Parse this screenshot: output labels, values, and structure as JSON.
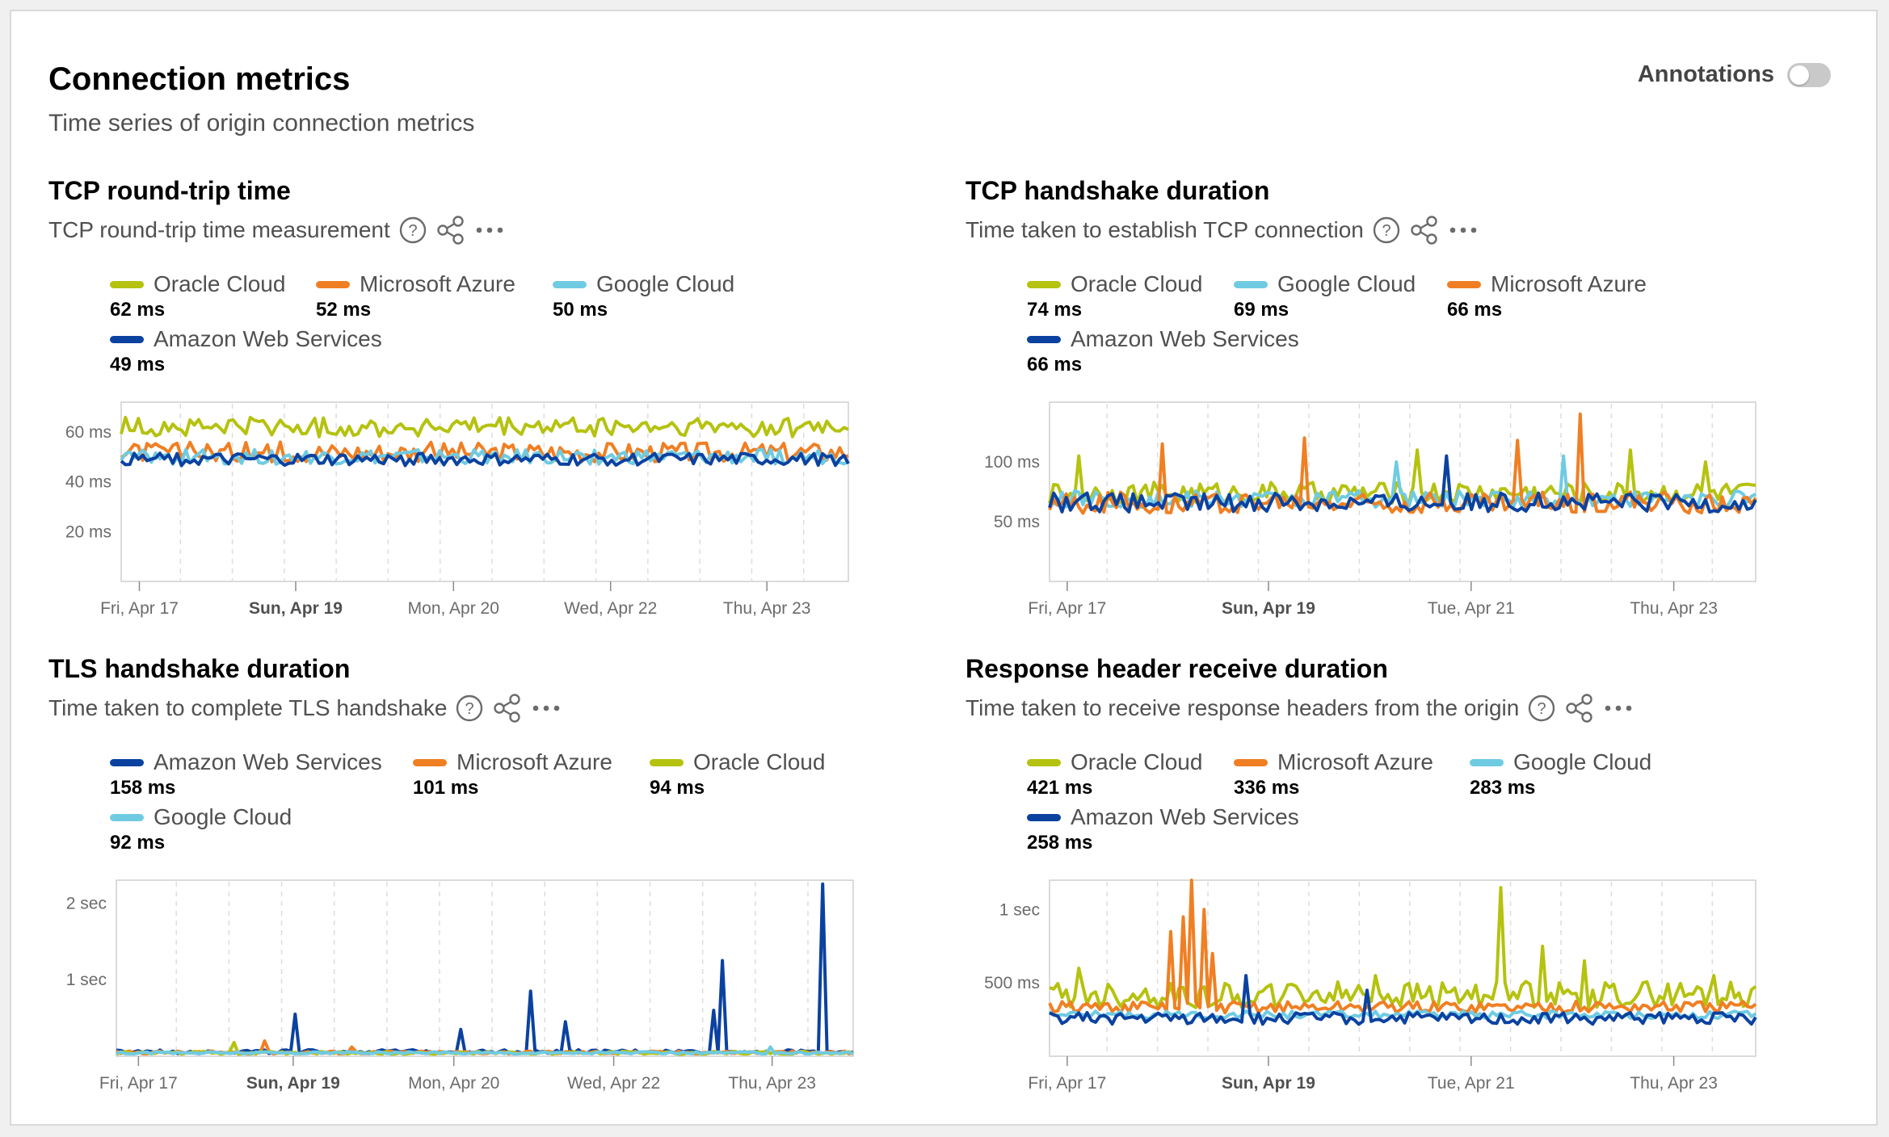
{
  "page": {
    "title": "Connection metrics",
    "subtitle": "Time series of origin connection metrics",
    "annotations_label": "Annotations",
    "annotations_enabled": false
  },
  "colors": {
    "Oracle Cloud": "#b5c20f",
    "Microsoft Azure": "#f07f23",
    "Google Cloud": "#6fcbe2",
    "Amazon Web Services": "#0b42a0"
  },
  "icons": [
    "help-circle-icon",
    "share-icon",
    "more-icon"
  ],
  "panels": [
    {
      "id": "tcp-rtt",
      "title": "TCP round-trip time",
      "subtitle": "TCP round-trip time measurement",
      "legend": [
        {
          "name": "Oracle Cloud",
          "value": "62 ms"
        },
        {
          "name": "Microsoft Azure",
          "value": "52 ms"
        },
        {
          "name": "Google Cloud",
          "value": "50 ms"
        },
        {
          "name": "Amazon Web Services",
          "value": "49 ms"
        }
      ],
      "y_ticks": [
        "60 ms",
        "40 ms",
        "20 ms"
      ],
      "x_ticks": [
        {
          "label": "Fri, Apr 17",
          "bold": false
        },
        {
          "label": "Sun, Apr 19",
          "bold": true
        },
        {
          "label": "Mon, Apr 20",
          "bold": false
        },
        {
          "label": "Wed, Apr 22",
          "bold": false
        },
        {
          "label": "Thu, Apr 23",
          "bold": false
        }
      ]
    },
    {
      "id": "tcp-handshake",
      "title": "TCP handshake duration",
      "subtitle": "Time taken to establish TCP connection",
      "legend": [
        {
          "name": "Oracle Cloud",
          "value": "74 ms"
        },
        {
          "name": "Google Cloud",
          "value": "69 ms"
        },
        {
          "name": "Microsoft Azure",
          "value": "66 ms"
        },
        {
          "name": "Amazon Web Services",
          "value": "66 ms"
        }
      ],
      "y_ticks": [
        "100 ms",
        "50 ms"
      ],
      "x_ticks": [
        {
          "label": "Fri, Apr 17",
          "bold": false
        },
        {
          "label": "Sun, Apr 19",
          "bold": true
        },
        {
          "label": "Tue, Apr 21",
          "bold": false
        },
        {
          "label": "Thu, Apr 23",
          "bold": false
        }
      ]
    },
    {
      "id": "tls-handshake",
      "title": "TLS handshake duration",
      "subtitle": "Time taken to complete TLS handshake",
      "legend": [
        {
          "name": "Amazon Web Services",
          "value": "158 ms"
        },
        {
          "name": "Microsoft Azure",
          "value": "101 ms"
        },
        {
          "name": "Oracle Cloud",
          "value": "94 ms"
        },
        {
          "name": "Google Cloud",
          "value": "92 ms"
        }
      ],
      "y_ticks": [
        "2 sec",
        "1 sec"
      ],
      "x_ticks": [
        {
          "label": "Fri, Apr 17",
          "bold": false
        },
        {
          "label": "Sun, Apr 19",
          "bold": true
        },
        {
          "label": "Mon, Apr 20",
          "bold": false
        },
        {
          "label": "Wed, Apr 22",
          "bold": false
        },
        {
          "label": "Thu, Apr 23",
          "bold": false
        }
      ]
    },
    {
      "id": "response-header",
      "title": "Response header receive duration",
      "subtitle": "Time taken to receive response headers from the origin",
      "legend": [
        {
          "name": "Oracle Cloud",
          "value": "421 ms"
        },
        {
          "name": "Microsoft Azure",
          "value": "336 ms"
        },
        {
          "name": "Google Cloud",
          "value": "283 ms"
        },
        {
          "name": "Amazon Web Services",
          "value": "258 ms"
        }
      ],
      "y_ticks": [
        "1 sec",
        "500 ms"
      ],
      "x_ticks": [
        {
          "label": "Fri, Apr 17",
          "bold": false
        },
        {
          "label": "Sun, Apr 19",
          "bold": true
        },
        {
          "label": "Tue, Apr 21",
          "bold": false
        },
        {
          "label": "Thu, Apr 23",
          "bold": false
        }
      ]
    }
  ],
  "chart_data": [
    {
      "type": "line",
      "title": "TCP round-trip time",
      "ylim": [
        0,
        72
      ],
      "x_range": [
        "Fri, Apr 17",
        "Thu, Apr 23"
      ],
      "grid": "vertical dashed",
      "series": [
        {
          "name": "Oracle Cloud",
          "base": 62,
          "noise": 4,
          "spikes": []
        },
        {
          "name": "Microsoft Azure",
          "base": 52,
          "noise": 4,
          "spikes": []
        },
        {
          "name": "Google Cloud",
          "base": 50,
          "noise": 3,
          "spikes": []
        },
        {
          "name": "Amazon Web Services",
          "base": 49,
          "noise": 2.5,
          "spikes": []
        }
      ]
    },
    {
      "type": "line",
      "title": "TCP handshake duration",
      "ylim": [
        0,
        150
      ],
      "x_range": [
        "Fri, Apr 17",
        "Thu, Apr 23"
      ],
      "grid": "vertical dashed",
      "series": [
        {
          "name": "Oracle Cloud",
          "base": 74,
          "noise": 9,
          "spikes": [
            [
              0.04,
              105
            ],
            [
              0.52,
              110
            ],
            [
              0.82,
              110
            ],
            [
              0.93,
              100
            ]
          ]
        },
        {
          "name": "Google Cloud",
          "base": 69,
          "noise": 7,
          "spikes": [
            [
              0.49,
              100
            ],
            [
              0.73,
              105
            ]
          ]
        },
        {
          "name": "Microsoft Azure",
          "base": 66,
          "noise": 9,
          "spikes": [
            [
              0.16,
              115
            ],
            [
              0.36,
              120
            ],
            [
              0.66,
              118
            ],
            [
              0.75,
              140
            ]
          ]
        },
        {
          "name": "Amazon Web Services",
          "base": 66,
          "noise": 8,
          "spikes": [
            [
              0.56,
              105
            ]
          ]
        }
      ]
    },
    {
      "type": "line",
      "title": "TLS handshake duration",
      "ylim": [
        0,
        2.3
      ],
      "y_unit": "sec",
      "x_range": [
        "Fri, Apr 17",
        "Thu, Apr 23"
      ],
      "grid": "vertical dashed",
      "series": [
        {
          "name": "Amazon Web Services",
          "base": 0.06,
          "noise": 0.025,
          "spikes": [
            [
              0.24,
              0.55
            ],
            [
              0.47,
              0.35
            ],
            [
              0.56,
              0.85
            ],
            [
              0.61,
              0.45
            ],
            [
              0.81,
              0.6
            ],
            [
              0.82,
              1.25
            ],
            [
              0.96,
              2.25
            ]
          ]
        },
        {
          "name": "Microsoft Azure",
          "base": 0.05,
          "noise": 0.02,
          "spikes": [
            [
              0.2,
              0.2
            ],
            [
              0.32,
              0.12
            ]
          ]
        },
        {
          "name": "Oracle Cloud",
          "base": 0.045,
          "noise": 0.02,
          "spikes": [
            [
              0.16,
              0.18
            ]
          ]
        },
        {
          "name": "Google Cloud",
          "base": 0.045,
          "noise": 0.015,
          "spikes": [
            [
              0.89,
              0.12
            ]
          ]
        }
      ]
    },
    {
      "type": "line",
      "title": "Response header receive duration",
      "ylim": [
        0,
        1.2
      ],
      "y_unit": "sec",
      "x_range": [
        "Fri, Apr 17",
        "Thu, Apr 23"
      ],
      "grid": "vertical dashed",
      "series": [
        {
          "name": "Oracle Cloud",
          "base": 0.42,
          "noise": 0.09,
          "spikes": [
            [
              0.04,
              0.6
            ],
            [
              0.46,
              0.55
            ],
            [
              0.64,
              1.15
            ],
            [
              0.7,
              0.75
            ],
            [
              0.76,
              0.65
            ],
            [
              0.94,
              0.55
            ]
          ]
        },
        {
          "name": "Microsoft Azure",
          "base": 0.336,
          "noise": 0.04,
          "spikes": [
            [
              0.17,
              0.85
            ],
            [
              0.19,
              0.95
            ],
            [
              0.2,
              1.2
            ],
            [
              0.22,
              1.0
            ],
            [
              0.23,
              0.7
            ]
          ]
        },
        {
          "name": "Google Cloud",
          "base": 0.283,
          "noise": 0.025,
          "spikes": []
        },
        {
          "name": "Amazon Web Services",
          "base": 0.258,
          "noise": 0.04,
          "spikes": [
            [
              0.28,
              0.55
            ],
            [
              0.45,
              0.45
            ]
          ]
        }
      ]
    }
  ]
}
